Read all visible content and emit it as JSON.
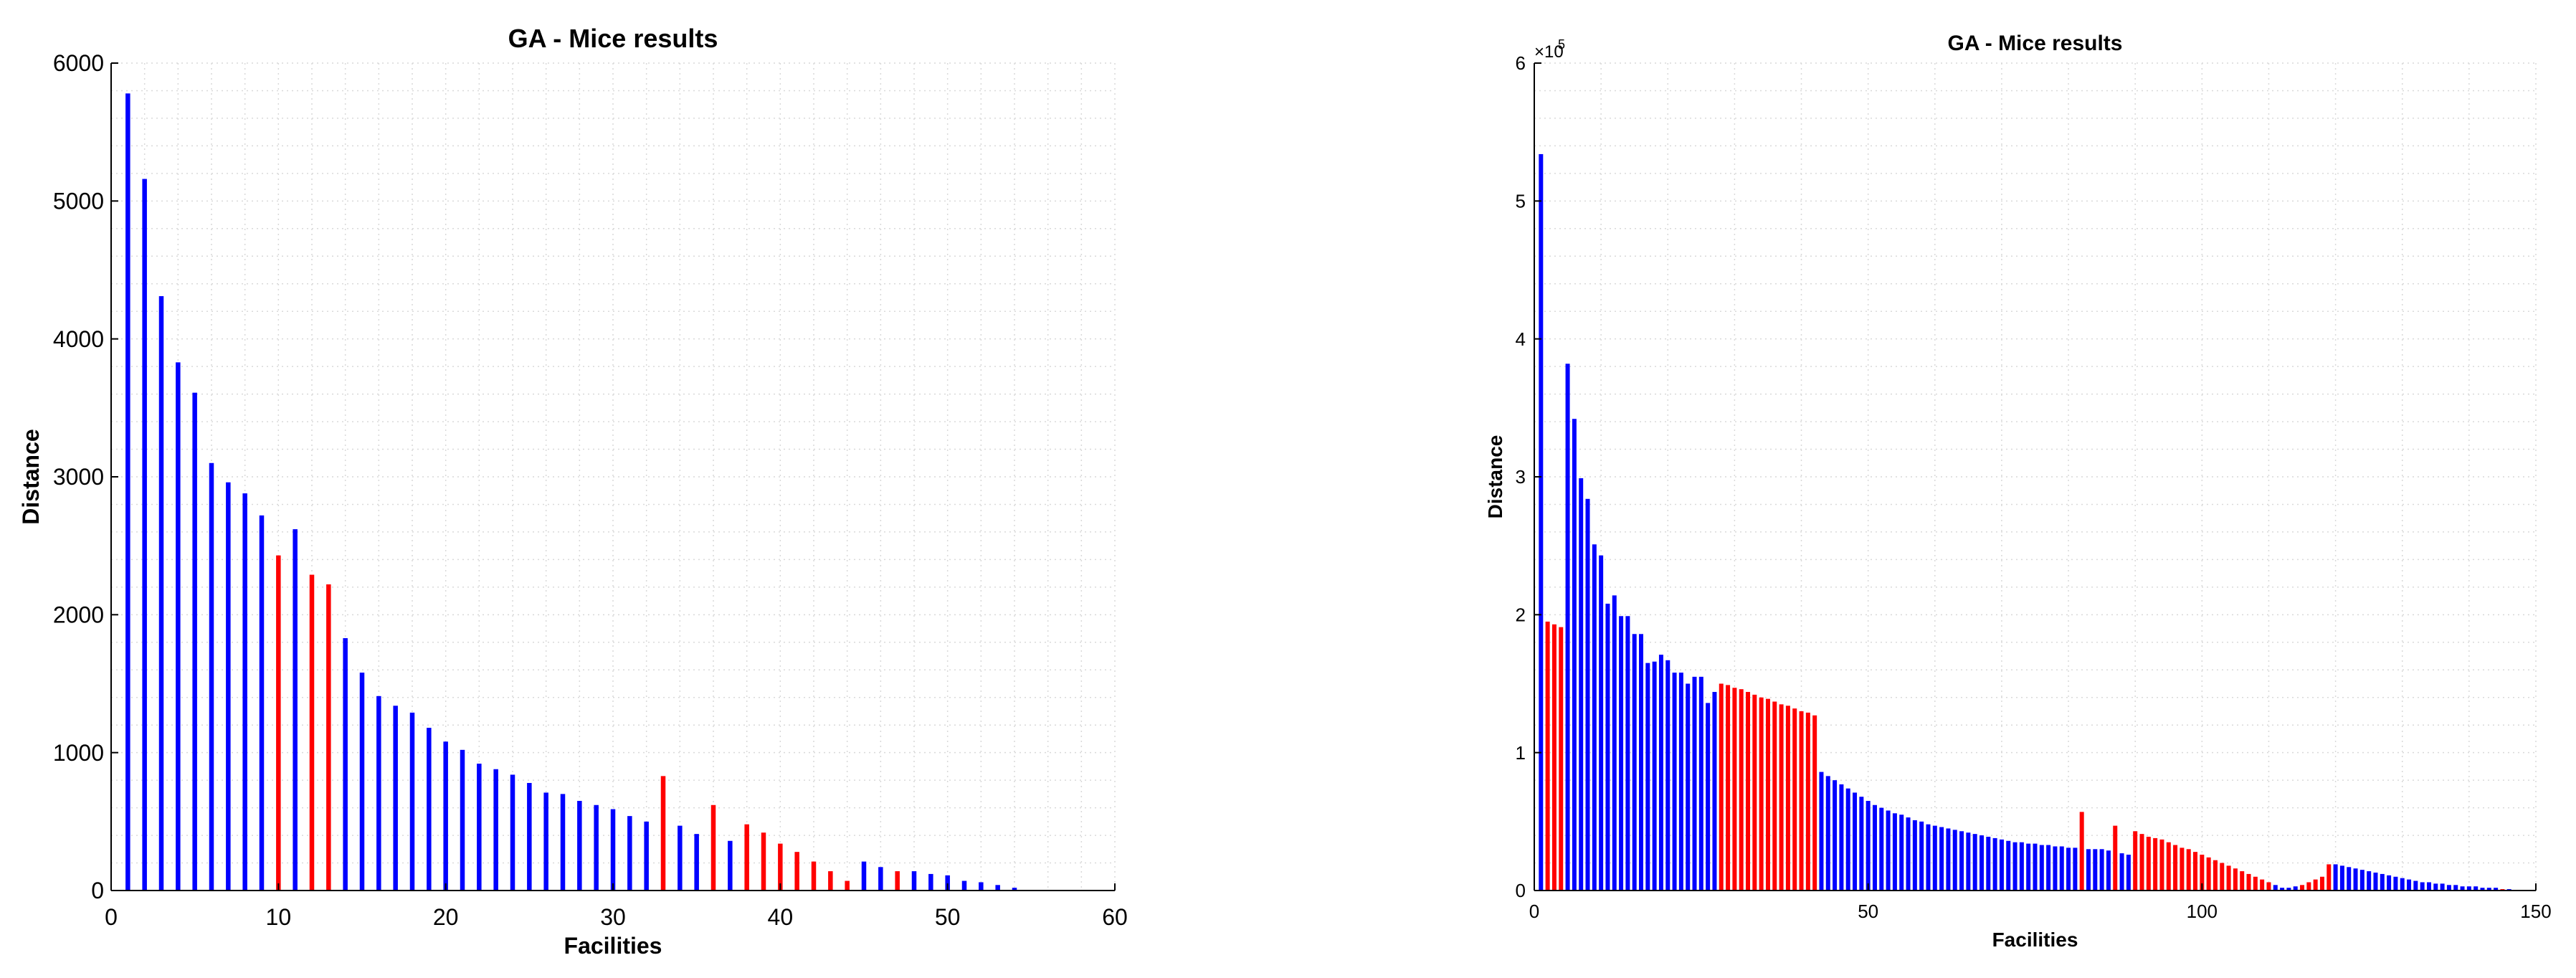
{
  "figure": {
    "colors": {
      "primary": "#0000ff",
      "highlight": "#ff0000",
      "axis": "#000000",
      "grid": "#d9d9d9"
    }
  },
  "chart_data": [
    {
      "type": "bar",
      "title": "GA - Mice results",
      "xlabel": "Facilities",
      "ylabel": "Distance",
      "xlim": [
        0,
        60
      ],
      "ylim": [
        0,
        6000
      ],
      "xticks": [
        "0",
        "10",
        "20",
        "30",
        "40",
        "50",
        "60"
      ],
      "yticks": [
        "0",
        "1000",
        "2000",
        "3000",
        "4000",
        "5000",
        "6000"
      ],
      "grid": true,
      "x": [
        1,
        2,
        3,
        4,
        5,
        6,
        7,
        8,
        9,
        10,
        11,
        12,
        13,
        14,
        15,
        16,
        17,
        18,
        19,
        20,
        21,
        22,
        23,
        24,
        25,
        26,
        27,
        28,
        29,
        30,
        31,
        32,
        33,
        34,
        35,
        36,
        37,
        38,
        39,
        40,
        41,
        42,
        43,
        44,
        45,
        46,
        47,
        48,
        49,
        50,
        51,
        52,
        53,
        54
      ],
      "values": [
        5780,
        5160,
        4310,
        3830,
        3610,
        3100,
        2960,
        2880,
        2720,
        2430,
        2620,
        2290,
        2220,
        1830,
        1580,
        1410,
        1340,
        1290,
        1180,
        1080,
        1020,
        920,
        880,
        840,
        780,
        710,
        700,
        650,
        620,
        590,
        540,
        500,
        830,
        470,
        410,
        620,
        360,
        480,
        420,
        340,
        280,
        210,
        140,
        70,
        210,
        170,
        140,
        140,
        120,
        110,
        70,
        60,
        40,
        20
      ],
      "highlighted": [
        10,
        12,
        13,
        33,
        36,
        38,
        39,
        40,
        41,
        42,
        43,
        44,
        47
      ]
    },
    {
      "type": "bar",
      "title": "GA - Mice results",
      "xlabel": "Facilities",
      "ylabel": "Distance",
      "xlim": [
        0,
        150
      ],
      "ylim": [
        0,
        6
      ],
      "yscale_label": "×10",
      "yscale_exponent": "5",
      "xticks": [
        "0",
        "50",
        "100",
        "150"
      ],
      "yticks": [
        "0",
        "1",
        "2",
        "3",
        "4",
        "5",
        "6"
      ],
      "grid": true,
      "values_e5": [
        5.34,
        1.95,
        1.93,
        1.91,
        3.82,
        3.42,
        2.99,
        2.84,
        2.51,
        2.43,
        2.08,
        2.14,
        1.99,
        1.99,
        1.86,
        1.86,
        1.65,
        1.66,
        1.71,
        1.67,
        1.58,
        1.58,
        1.5,
        1.55,
        1.55,
        1.36,
        1.44,
        1.5,
        1.49,
        1.47,
        1.46,
        1.44,
        1.42,
        1.4,
        1.39,
        1.37,
        1.35,
        1.34,
        1.32,
        1.3,
        1.29,
        1.27,
        0.86,
        0.83,
        0.8,
        0.77,
        0.74,
        0.71,
        0.68,
        0.65,
        0.62,
        0.6,
        0.58,
        0.56,
        0.55,
        0.53,
        0.51,
        0.5,
        0.48,
        0.47,
        0.46,
        0.45,
        0.44,
        0.43,
        0.42,
        0.41,
        0.4,
        0.39,
        0.38,
        0.37,
        0.36,
        0.35,
        0.35,
        0.34,
        0.34,
        0.33,
        0.33,
        0.32,
        0.32,
        0.31,
        0.31,
        0.57,
        0.3,
        0.3,
        0.3,
        0.29,
        0.47,
        0.27,
        0.26,
        0.43,
        0.41,
        0.39,
        0.38,
        0.37,
        0.35,
        0.33,
        0.31,
        0.3,
        0.28,
        0.26,
        0.24,
        0.22,
        0.2,
        0.18,
        0.16,
        0.14,
        0.12,
        0.1,
        0.08,
        0.06,
        0.04,
        0.02,
        0.02,
        0.03,
        0.04,
        0.06,
        0.08,
        0.1,
        0.19,
        0.19,
        0.18,
        0.17,
        0.16,
        0.15,
        0.14,
        0.13,
        0.12,
        0.11,
        0.1,
        0.09,
        0.08,
        0.07,
        0.06,
        0.06,
        0.05,
        0.05,
        0.04,
        0.04,
        0.03,
        0.03,
        0.03,
        0.02,
        0.02,
        0.02,
        0.01,
        0.01
      ],
      "highlight_ranges": [
        [
          2,
          4
        ],
        [
          28,
          42
        ],
        [
          82,
          82
        ],
        [
          87,
          87
        ],
        [
          90,
          110
        ],
        [
          115,
          119
        ],
        [
          145,
          145
        ]
      ]
    }
  ]
}
